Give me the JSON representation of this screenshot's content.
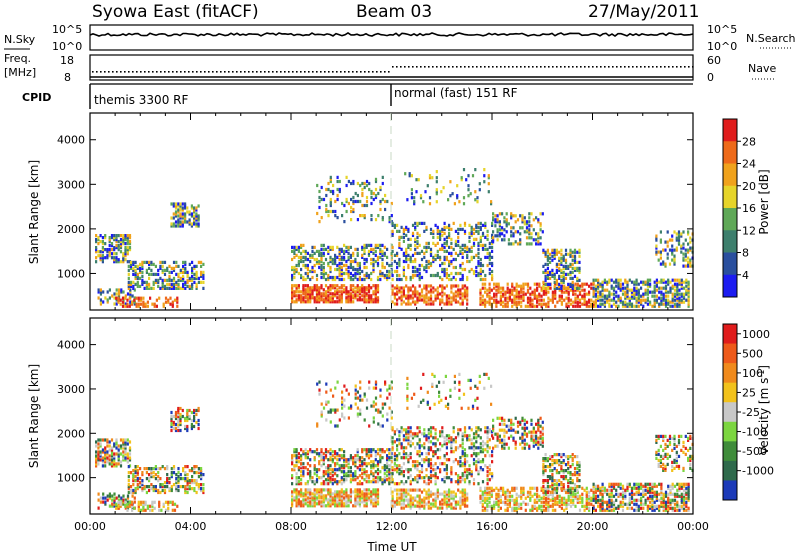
{
  "header": {
    "station": "Syowa East (fitACF)",
    "beam": "Beam 03",
    "date": "27/May/2011"
  },
  "noise_panel": {
    "left_label": "N.Sky",
    "right_label": "N.Search",
    "left_ticks": [
      "10^5",
      "10^0"
    ],
    "right_ticks": [
      "10^5",
      "10^0"
    ]
  },
  "freq_panel": {
    "left_label_1": "Freq.",
    "left_label_2": "[MHz]",
    "left_ticks": [
      "18",
      "8"
    ],
    "right_label": "Nave",
    "right_ticks": [
      "60",
      "0"
    ]
  },
  "cpid_panel": {
    "label": "CPID",
    "modes": [
      {
        "name": "themis 3300 RF",
        "start_hour": 0
      },
      {
        "name": "normal (fast) 151 RF",
        "start_hour": 12
      }
    ]
  },
  "chart_data": [
    {
      "type": "heatmap",
      "id": "power",
      "xlabel": "",
      "ylabel": "Slant Range [km]",
      "xlim": [
        0,
        24
      ],
      "ylim": [
        180,
        4600
      ],
      "yticks": [
        "1000",
        "2000",
        "3000",
        "4000"
      ],
      "colorbar_label": "Power [dB]",
      "colorbar_ticks": [
        "4",
        "8",
        "12",
        "16",
        "20",
        "24",
        "28"
      ],
      "colors": [
        "#1c1cf0",
        "#2a4f9e",
        "#3d7f6d",
        "#5fa857",
        "#e6d42a",
        "#f0a21c",
        "#ee6a1a",
        "#e01c1c"
      ]
    },
    {
      "type": "heatmap",
      "id": "velocity",
      "xlabel": "Time UT",
      "ylabel": "Slant Range [km]",
      "xlim": [
        0,
        24
      ],
      "ylim": [
        180,
        4600
      ],
      "xticks": [
        "00:00",
        "04:00",
        "08:00",
        "12:00",
        "16:00",
        "20:00",
        "00:00"
      ],
      "yticks": [
        "1000",
        "2000",
        "3000",
        "4000"
      ],
      "colorbar_label": "Velocity [m s",
      "colorbar_label_sup": "-1",
      "colorbar_label_end": "]",
      "colorbar_ticks": [
        "1000",
        "500",
        "100",
        "25",
        "-25",
        "-100",
        "-500",
        "-1000"
      ],
      "colors": [
        "#1c3ab8",
        "#2f6a4c",
        "#3f8c3a",
        "#7cd640",
        "#c8c8c8",
        "#f2c21c",
        "#f08a1c",
        "#ee5a1a",
        "#e01c1c"
      ]
    }
  ]
}
